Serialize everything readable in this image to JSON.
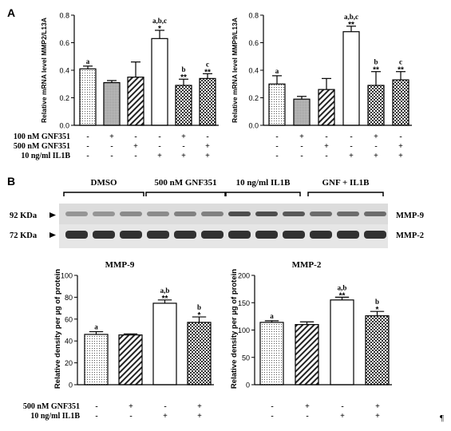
{
  "panelA": {
    "label": "A",
    "treatments": [
      {
        "label": "100 nM GNF351",
        "marks": [
          "-",
          "+",
          "-",
          "-",
          "+",
          "-"
        ]
      },
      {
        "label": "500 nM GNF351",
        "marks": [
          "-",
          "-",
          "+",
          "-",
          "-",
          "+"
        ]
      },
      {
        "label": "10 ng/ml IL1B",
        "marks": [
          "-",
          "-",
          "-",
          "+",
          "+",
          "+"
        ]
      }
    ]
  },
  "panelB": {
    "label": "B",
    "blot": {
      "groups": [
        "DMSO",
        "500 nM GNF351",
        "10 ng/ml IL1B",
        "GNF + IL1B"
      ],
      "left_labels": [
        "92 KDa",
        "72 KDa"
      ],
      "right_labels": [
        "MMP-9",
        "MMP-2"
      ]
    },
    "treatments": [
      {
        "label": "500 nM GNF351",
        "marks": [
          "-",
          "+",
          "-",
          "+"
        ]
      },
      {
        "label": "10 ng/ml IL1B",
        "marks": [
          "-",
          "-",
          "+",
          "+"
        ]
      }
    ]
  },
  "pilcrow": "¶",
  "chart_data": [
    {
      "type": "bar",
      "ylabel": "Relative mRNA level MMP2/L13A",
      "ylim": [
        0,
        0.8
      ],
      "yticks": [
        "0.0",
        "0.2",
        "0.4",
        "0.6",
        "0.8"
      ],
      "values": [
        0.41,
        0.31,
        0.35,
        0.63,
        0.29,
        0.34
      ],
      "errors": [
        0.02,
        0.015,
        0.11,
        0.06,
        0.045,
        0.035
      ],
      "patterns": [
        "dots",
        "gray",
        "hatch",
        "white",
        "check",
        "check"
      ],
      "annotations": [
        [
          "a"
        ],
        [],
        [],
        [
          "a,b,c",
          "*"
        ],
        [
          "b",
          "**"
        ],
        [
          "c",
          "**"
        ]
      ]
    },
    {
      "type": "bar",
      "ylabel": "Relative mRNA level MMP9/L13A",
      "ylim": [
        0,
        0.8
      ],
      "yticks": [
        "0.0",
        "0.2",
        "0.4",
        "0.6",
        "0.8"
      ],
      "values": [
        0.3,
        0.19,
        0.26,
        0.68,
        0.29,
        0.33
      ],
      "errors": [
        0.06,
        0.02,
        0.08,
        0.04,
        0.1,
        0.06
      ],
      "patterns": [
        "dots",
        "gray",
        "hatch",
        "white",
        "check",
        "check"
      ],
      "annotations": [
        [
          "a"
        ],
        [],
        [],
        [
          "a,b,c",
          "**"
        ],
        [
          "b",
          "**"
        ],
        [
          "c",
          "**"
        ]
      ]
    },
    {
      "type": "bar",
      "title": "MMP-9",
      "ylabel": "Relative density per µg of protein",
      "ylim": [
        0,
        100
      ],
      "yticks": [
        "0",
        "20",
        "40",
        "60",
        "80",
        "100"
      ],
      "values": [
        46,
        45.5,
        74.5,
        57
      ],
      "errors": [
        2.5,
        1,
        3,
        5
      ],
      "patterns": [
        "dots",
        "hatch",
        "white",
        "check"
      ],
      "annotations": [
        [
          "a"
        ],
        [],
        [
          "a,b",
          "**"
        ],
        [
          "b",
          "*"
        ]
      ]
    },
    {
      "type": "bar",
      "title": "MMP-2",
      "ylabel": "Relative density per µg of protein",
      "ylim": [
        0,
        200
      ],
      "yticks": [
        "0",
        "50",
        "100",
        "150",
        "200"
      ],
      "values": [
        114,
        110,
        155,
        126
      ],
      "errors": [
        3,
        5,
        5,
        8
      ],
      "patterns": [
        "dots",
        "hatch",
        "white",
        "check"
      ],
      "annotations": [
        [
          "a"
        ],
        [],
        [
          "a,b",
          "**"
        ],
        [
          "b",
          "*"
        ]
      ]
    }
  ]
}
